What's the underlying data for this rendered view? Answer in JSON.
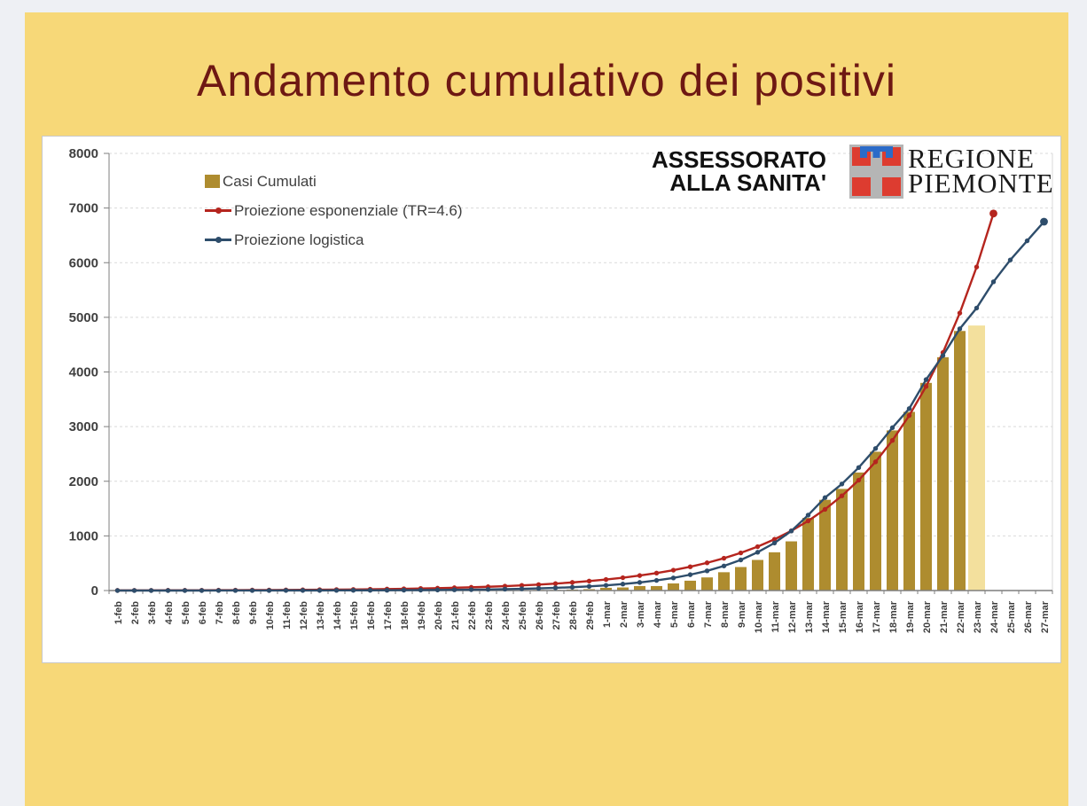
{
  "slide": {
    "title": "Andamento cumulativo dei positivi"
  },
  "header_right": {
    "department_line1": "ASSESSORATO",
    "department_line2": "ALLA SANITA'",
    "region_line1": "REGIONE",
    "region_line2": "PIEMONTE"
  },
  "colors": {
    "canvas_bg": "#eef0f4",
    "slide_bg": "#f7d878",
    "title": "#6e1813",
    "panel_bg": "#ffffff",
    "panel_border": "#c9c9c9",
    "bars": "#ae8c2f",
    "bar_highlight": "#f3e09d",
    "exp_line": "#b5251e",
    "log_line": "#2e4d6b",
    "grid": "#d9d9d9",
    "axis": "#7f7f7f",
    "tick_label": "#3f3f3f",
    "crest_gray": "#b5b5b5",
    "crest_red": "#dd3c30",
    "crest_blue": "#2b6bc8"
  },
  "chart_data": {
    "type": "bar",
    "subtype": "combo bar + line projections",
    "categories": [
      "1-feb",
      "2-feb",
      "3-feb",
      "4-feb",
      "5-feb",
      "6-feb",
      "7-feb",
      "8-feb",
      "9-feb",
      "10-feb",
      "11-feb",
      "12-feb",
      "13-feb",
      "14-feb",
      "15-feb",
      "16-feb",
      "17-feb",
      "18-feb",
      "19-feb",
      "20-feb",
      "21-feb",
      "22-feb",
      "23-feb",
      "24-feb",
      "25-feb",
      "26-feb",
      "27-feb",
      "28-feb",
      "29-feb",
      "1-mar",
      "2-mar",
      "3-mar",
      "4-mar",
      "5-mar",
      "6-mar",
      "7-mar",
      "8-mar",
      "9-mar",
      "10-mar",
      "11-mar",
      "12-mar",
      "13-mar",
      "14-mar",
      "15-mar",
      "16-mar",
      "17-mar",
      "18-mar",
      "19-mar",
      "20-mar",
      "21-mar",
      "22-mar",
      "23-mar",
      "24-mar",
      "25-mar",
      "26-mar",
      "27-mar"
    ],
    "ylim": [
      0,
      8000
    ],
    "ytick_step": 1000,
    "grid": "horizontal dashed",
    "legend_position": "top-left inside plot",
    "x_label_rotation": -90,
    "series": [
      {
        "name": "Casi Cumulati",
        "type": "bar",
        "color": "#ae8c2f",
        "highlight_index": 51,
        "highlight_color": "#f3e09d",
        "values": [
          0,
          0,
          0,
          0,
          0,
          0,
          0,
          0,
          0,
          0,
          0,
          0,
          0,
          0,
          0,
          0,
          0,
          0,
          0,
          0,
          0,
          2,
          3,
          3,
          9,
          11,
          11,
          18,
          25,
          50,
          56,
          82,
          82,
          130,
          180,
          240,
          335,
          430,
          560,
          700,
          900,
          1330,
          1660,
          1860,
          2160,
          2540,
          2930,
          3270,
          3800,
          4270,
          4750,
          4850,
          null,
          null,
          null,
          null
        ]
      },
      {
        "name": "Proiezione esponenziale (TR=4.6)",
        "type": "line",
        "color": "#b5251e",
        "values": [
          2,
          3,
          3,
          4,
          4,
          5,
          6,
          7,
          8,
          9,
          11,
          13,
          15,
          17,
          20,
          23,
          27,
          32,
          37,
          43,
          51,
          59,
          69,
          80,
          94,
          109,
          127,
          148,
          173,
          202,
          235,
          274,
          320,
          373,
          435,
          507,
          591,
          689,
          803,
          937,
          1092,
          1274,
          1486,
          1733,
          2020,
          2355,
          2747,
          3203,
          3735,
          4355,
          5078,
          5921,
          6900,
          null,
          null,
          null
        ]
      },
      {
        "name": "Proiezione logistica",
        "type": "line",
        "color": "#2e4d6b",
        "values": [
          0,
          0,
          0,
          0,
          0,
          0,
          1,
          1,
          1,
          1,
          2,
          2,
          2,
          3,
          4,
          4,
          5,
          7,
          8,
          10,
          13,
          16,
          20,
          25,
          31,
          39,
          49,
          61,
          76,
          95,
          118,
          148,
          185,
          230,
          290,
          360,
          450,
          560,
          700,
          870,
          1090,
          1380,
          1700,
          1950,
          2250,
          2600,
          2980,
          3330,
          3860,
          4300,
          4790,
          5170,
          5650,
          6050,
          6400,
          6750
        ]
      }
    ]
  }
}
